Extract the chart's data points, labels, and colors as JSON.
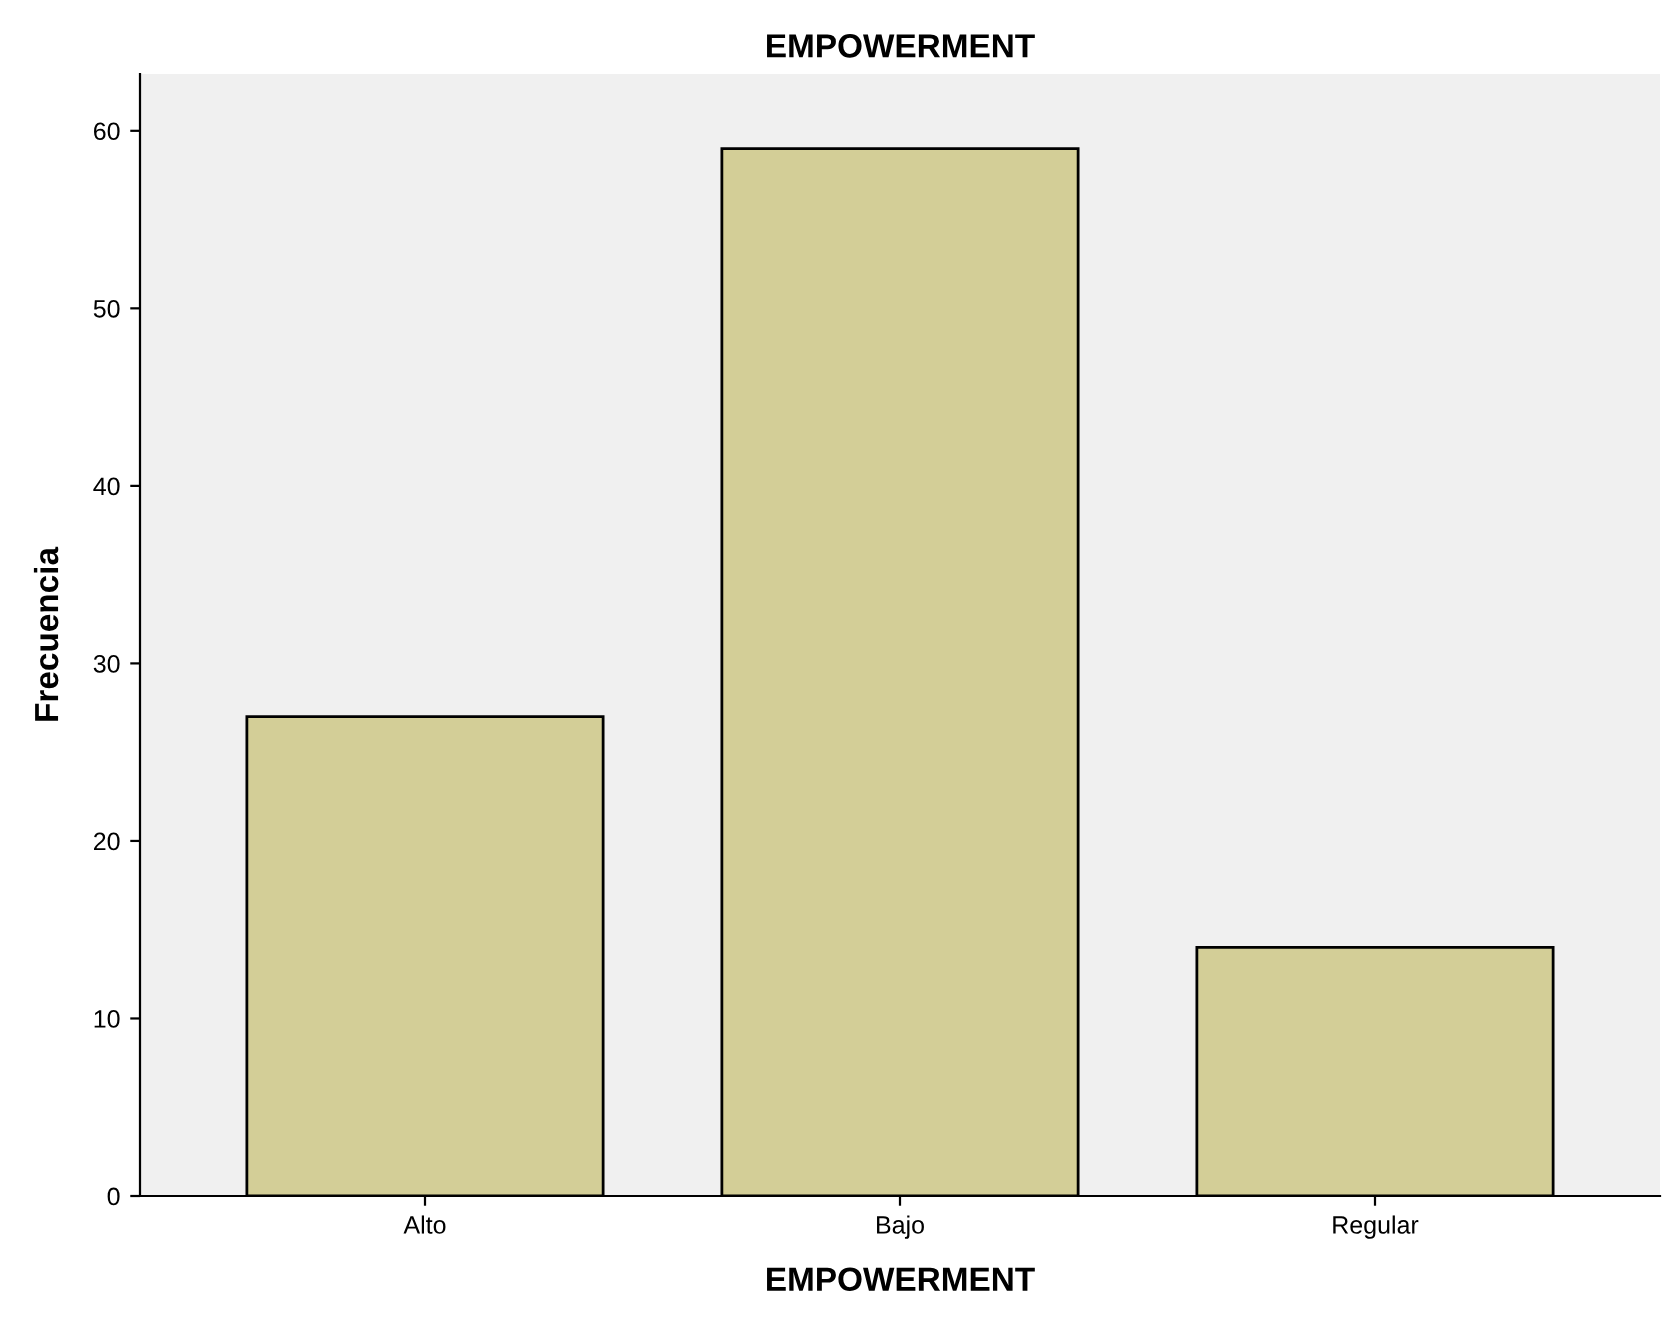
{
  "chart_data": {
    "type": "bar",
    "title": "EMPOWERMENT",
    "xlabel": "EMPOWERMENT",
    "ylabel": "Frecuencia",
    "categories": [
      "Alto",
      "Bajo",
      "Regular"
    ],
    "values": [
      27,
      59,
      14
    ],
    "color": "#d3ce97",
    "ylim": [
      0,
      63.2
    ],
    "yticks": [
      0,
      10,
      20,
      30,
      40,
      50,
      60
    ],
    "grid": false,
    "legend": false
  }
}
